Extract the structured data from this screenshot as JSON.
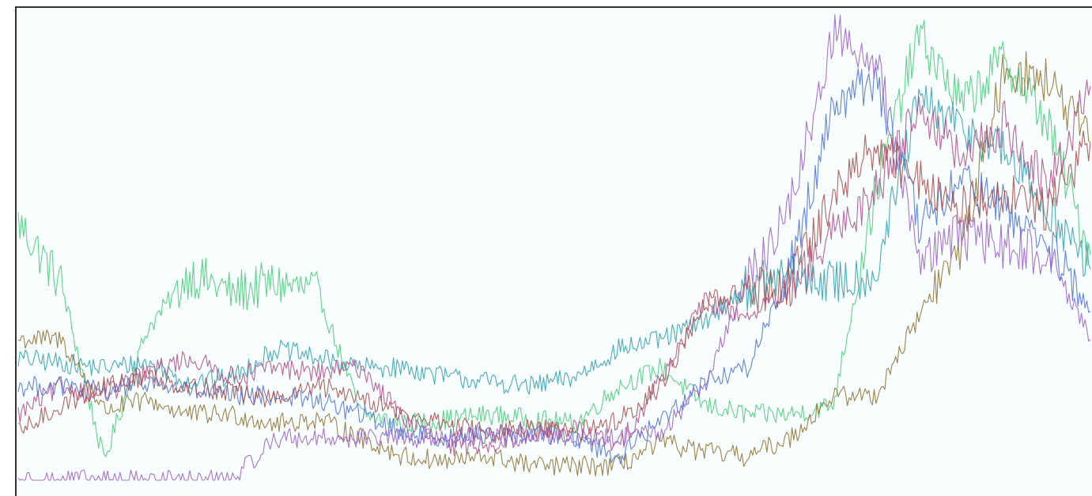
{
  "chart_data": {
    "type": "line",
    "title": "",
    "xlabel": "",
    "ylabel": "",
    "grid": false,
    "legend": "none",
    "xlim": [
      0,
      100
    ],
    "ylim": [
      0,
      100
    ],
    "x": [
      0,
      4,
      8,
      12,
      16,
      20,
      24,
      28,
      32,
      36,
      40,
      44,
      48,
      52,
      56,
      60,
      64,
      68,
      72,
      76,
      80,
      84,
      88,
      92,
      96,
      100
    ],
    "series": [
      {
        "color": "#44cc77",
        "values": [
          55,
          42,
          4,
          32,
          44,
          40,
          42,
          40,
          14,
          12,
          13,
          14,
          13,
          12,
          20,
          24,
          16,
          14,
          14,
          16,
          62,
          95,
          80,
          90,
          76,
          48
        ]
      },
      {
        "color": "#2a9fb0",
        "values": [
          26,
          25,
          24,
          25,
          21,
          22,
          28,
          26,
          24,
          24,
          22,
          21,
          20,
          22,
          28,
          30,
          34,
          41,
          44,
          42,
          44,
          81,
          75,
          70,
          58,
          45
        ]
      },
      {
        "color": "#8b6f2e",
        "values": [
          30,
          30,
          15,
          17,
          14,
          14,
          12,
          13,
          9,
          5,
          4,
          5,
          3,
          3,
          3,
          8,
          6,
          5,
          9,
          18,
          18,
          35,
          50,
          88,
          85,
          72
        ]
      },
      {
        "color": "#b04a8a",
        "values": [
          14,
          20,
          18,
          23,
          26,
          22,
          24,
          23,
          24,
          13,
          7,
          8,
          10,
          11,
          7,
          22,
          38,
          35,
          40,
          52,
          62,
          80,
          68,
          76,
          62,
          84
        ]
      },
      {
        "color": "#4a6fd8",
        "values": [
          20,
          20,
          19,
          21,
          19,
          18,
          18,
          17,
          14,
          10,
          9,
          10,
          10,
          9,
          5,
          13,
          21,
          24,
          45,
          80,
          86,
          54,
          64,
          58,
          50,
          36
        ]
      },
      {
        "color": "#9a5ec8",
        "values": [
          0,
          0,
          0,
          0,
          0,
          0,
          9,
          9,
          9,
          9,
          9,
          9,
          9,
          9,
          9,
          10,
          21,
          42,
          58,
          95,
          90,
          48,
          52,
          50,
          48,
          30
        ]
      },
      {
        "color": "#a84848",
        "values": [
          10,
          16,
          20,
          22,
          20,
          19,
          17,
          20,
          18,
          14,
          12,
          10,
          11,
          10,
          13,
          20,
          38,
          40,
          42,
          60,
          72,
          64,
          58,
          62,
          58,
          72
        ]
      }
    ]
  }
}
